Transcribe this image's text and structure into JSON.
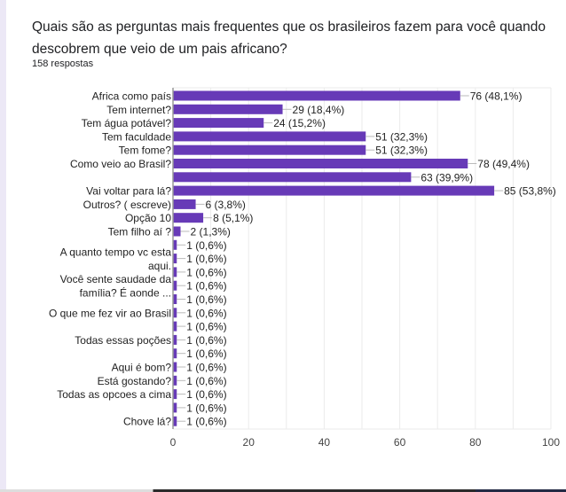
{
  "question": {
    "title": "Quais são as perguntas mais frequentes que os brasileiros fazem para você quando descobrem que veio de um pais africano?",
    "response_count": "158 respostas"
  },
  "chart_data": {
    "type": "bar",
    "orientation": "horizontal",
    "bar_color": "#673ab7",
    "xlim": [
      0,
      100
    ],
    "x_ticks": [
      "0",
      "20",
      "40",
      "60",
      "80",
      "100"
    ],
    "grid": true,
    "rows": [
      {
        "label": [
          "Africa como país"
        ],
        "value": 76,
        "text": "76 (48,1%)"
      },
      {
        "label": [
          "Tem internet?"
        ],
        "value": 29,
        "text": "29 (18,4%)"
      },
      {
        "label": [
          "Tem água potável?"
        ],
        "value": 24,
        "text": "24 (15,2%)"
      },
      {
        "label": [
          "Tem faculdade"
        ],
        "value": 51,
        "text": "51 (32,3%)"
      },
      {
        "label": [
          "Tem fome?"
        ],
        "value": 51,
        "text": "51 (32,3%)"
      },
      {
        "label": [
          "Como veio ao Brasil?"
        ],
        "value": 78,
        "text": "78 (49,4%)"
      },
      {
        "label": [],
        "value": 63,
        "text": "63 (39,9%)"
      },
      {
        "label": [
          "Vai voltar para lá?"
        ],
        "value": 85,
        "text": "85 (53,8%)"
      },
      {
        "label": [
          "Outros? ( escreve)"
        ],
        "value": 6,
        "text": "6 (3,8%)"
      },
      {
        "label": [
          "Opção 10"
        ],
        "value": 8,
        "text": "8 (5,1%)"
      },
      {
        "label": [
          "Tem filho aí ?"
        ],
        "value": 2,
        "text": "2 (1,3%)"
      },
      {
        "label": [],
        "value": 1,
        "text": "1 (0,6%)"
      },
      {
        "label": [
          "A quanto tempo vc esta",
          "aqui."
        ],
        "value": 1,
        "text": "1 (0,6%)"
      },
      {
        "label": [],
        "value": 1,
        "text": "1 (0,6%)"
      },
      {
        "label": [
          "Você sente saudade da",
          "família? É aonde ..."
        ],
        "value": 1,
        "text": "1 (0,6%)"
      },
      {
        "label": [],
        "value": 1,
        "text": "1 (0,6%)"
      },
      {
        "label": [
          "O que me fez vir ao Brasil"
        ],
        "value": 1,
        "text": "1 (0,6%)"
      },
      {
        "label": [],
        "value": 1,
        "text": "1 (0,6%)"
      },
      {
        "label": [
          "Todas essas poções"
        ],
        "value": 1,
        "text": "1 (0,6%)"
      },
      {
        "label": [],
        "value": 1,
        "text": "1 (0,6%)"
      },
      {
        "label": [
          "Aqui é bom?"
        ],
        "value": 1,
        "text": "1 (0,6%)"
      },
      {
        "label": [
          "Está gostando?"
        ],
        "value": 1,
        "text": "1 (0,6%)"
      },
      {
        "label": [
          "Todas as opcoes a cima"
        ],
        "value": 1,
        "text": "1 (0,6%)"
      },
      {
        "label": [],
        "value": 1,
        "text": "1 (0,6%)"
      },
      {
        "label": [
          "Chove lá?"
        ],
        "value": 1,
        "text": "1 (0,6%)"
      }
    ]
  }
}
